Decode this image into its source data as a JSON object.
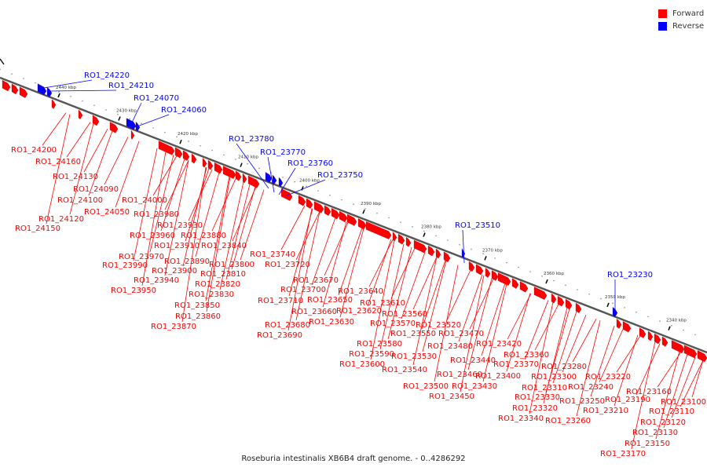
{
  "legend": {
    "forward_label": "Forward",
    "reverse_label": "Reverse",
    "forward_color": "#ff0000",
    "reverse_color": "#0000ff"
  },
  "caption": "Roseburia intestinalis XB6B4 draft genome. - 0..4286292",
  "ticks": [
    "2440 kbp",
    "2430 kbp",
    "2420 kbp",
    "2410 kbp",
    "2400 kbp",
    "2390 kbp",
    "2380 kbp",
    "2370 kbp",
    "2360 kbp",
    "2350 kbp",
    "2340 kbp"
  ],
  "labels": {
    "reverse": [
      "RO1_24220",
      "RO1_24210",
      "RO1_24070",
      "RO1_24060",
      "RO1_23780",
      "RO1_23770",
      "RO1_23760",
      "RO1_23750",
      "RO1_23510",
      "RO1_23230"
    ],
    "forward": [
      "RO1_24200",
      "RO1_24160",
      "RO1_24130",
      "RO1_24090",
      "RO1_24100",
      "RO1_24050",
      "RO1_24120",
      "RO1_24150",
      "RO1_24000",
      "RO1_23980",
      "RO1_23930",
      "RO1_23960",
      "RO1_23880",
      "RO1_23910",
      "RO1_23840",
      "RO1_23970",
      "RO1_23890",
      "RO1_23990",
      "RO1_23900",
      "RO1_23800",
      "RO1_23810",
      "RO1_23940",
      "RO1_23820",
      "RO1_23950",
      "RO1_23830",
      "RO1_23850",
      "RO1_23860",
      "RO1_23870",
      "RO1_23740",
      "RO1_23720",
      "RO1_23670",
      "RO1_23700",
      "RO1_23640",
      "RO1_23710",
      "RO1_23650",
      "RO1_23610",
      "RO1_23660",
      "RO1_23620",
      "RO1_23560",
      "RO1_23680",
      "RO1_23630",
      "RO1_23570",
      "RO1_23520",
      "RO1_23690",
      "RO1_23550",
      "RO1_23470",
      "RO1_23580",
      "RO1_23480",
      "RO1_23420",
      "RO1_23590",
      "RO1_23530",
      "RO1_23440",
      "RO1_23600",
      "RO1_23540",
      "RO1_23460",
      "RO1_23400",
      "RO1_23500",
      "RO1_23430",
      "RO1_23450",
      "RO1_23360",
      "RO1_23370",
      "RO1_23280",
      "RO1_23300",
      "RO1_23220",
      "RO1_23310",
      "RO1_23240",
      "RO1_23330",
      "RO1_23250",
      "RO1_23210",
      "RO1_23190",
      "RO1_23320",
      "RO1_23340",
      "RO1_23260",
      "RO1_23160",
      "RO1_23100",
      "RO1_23110",
      "RO1_23120",
      "RO1_23130",
      "RO1_23150",
      "RO1_23170"
    ]
  }
}
